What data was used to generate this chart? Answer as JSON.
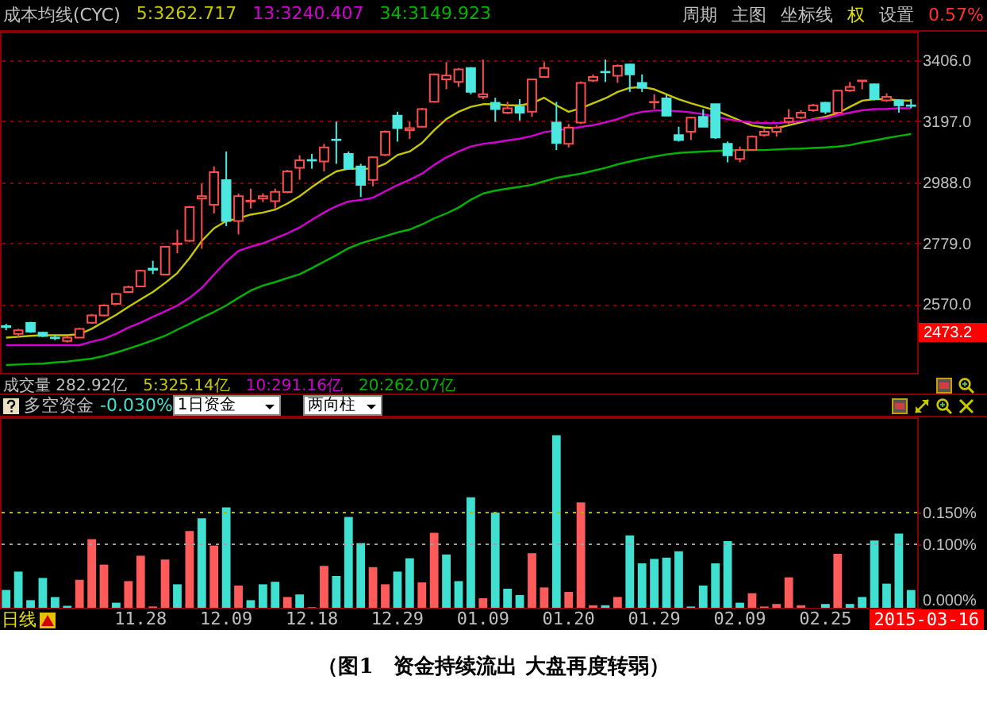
{
  "chart_data": [
    {
      "type": "candlestick",
      "title": "成本均线(CYC)",
      "legend": "top",
      "tick_labels": "y",
      "grid": "y",
      "categories": [
        null,
        null,
        null,
        null,
        null,
        null,
        null,
        null,
        null,
        null,
        null,
        "11.28",
        null,
        null,
        null,
        null,
        null,
        null,
        "12.09",
        null,
        null,
        null,
        null,
        null,
        null,
        "12.18",
        null,
        null,
        null,
        null,
        null,
        null,
        "12.29",
        null,
        null,
        null,
        null,
        null,
        null,
        "01.09",
        null,
        null,
        null,
        null,
        null,
        null,
        "01.20",
        null,
        null,
        null,
        null,
        null,
        null,
        "01.29",
        null,
        null,
        null,
        null,
        null,
        null,
        "02.09",
        null,
        null,
        null,
        null,
        null,
        null,
        "02.25",
        null,
        null,
        null,
        null,
        null,
        null,
        null
      ],
      "ohlc": [
        [
          2495,
          2503,
          2481,
          2492
        ],
        [
          2469,
          2486,
          2456,
          2481
        ],
        [
          2506,
          2510,
          2472,
          2476
        ],
        [
          2473,
          2476,
          2458,
          2461
        ],
        [
          2456,
          2464,
          2447,
          2454
        ],
        [
          2444,
          2461,
          2439,
          2456
        ],
        [
          2456,
          2489,
          2454,
          2486
        ],
        [
          2507,
          2537,
          2503,
          2532
        ],
        [
          2532,
          2570,
          2529,
          2566
        ],
        [
          2571,
          2609,
          2568,
          2605
        ],
        [
          2612,
          2634,
          2609,
          2629
        ],
        [
          2631,
          2688,
          2629,
          2685
        ],
        [
          2692,
          2719,
          2673,
          2688
        ],
        [
          2672,
          2770,
          2669,
          2767
        ],
        [
          2776,
          2825,
          2745,
          2778
        ],
        [
          2787,
          2907,
          2784,
          2903
        ],
        [
          2932,
          2983,
          2760,
          2940
        ],
        [
          2911,
          3042,
          2881,
          3022
        ],
        [
          2995,
          3093,
          2838,
          2855
        ],
        [
          2855,
          2949,
          2809,
          2940
        ],
        [
          2922,
          2966,
          2898,
          2925
        ],
        [
          2932,
          2950,
          2920,
          2940
        ],
        [
          2923,
          2966,
          2898,
          2955
        ],
        [
          2954,
          3030,
          2950,
          3025
        ],
        [
          3037,
          3080,
          2996,
          3063
        ],
        [
          3064,
          3085,
          3034,
          3062
        ],
        [
          3059,
          3119,
          3025,
          3107
        ],
        [
          3134,
          3195,
          3051,
          3132
        ],
        [
          3085,
          3093,
          3032,
          3034
        ],
        [
          3042,
          3051,
          2937,
          2979
        ],
        [
          2996,
          3075,
          2974,
          3073
        ],
        [
          3081,
          3165,
          3078,
          3161
        ],
        [
          3216,
          3229,
          3127,
          3173
        ],
        [
          3166,
          3195,
          3136,
          3173
        ],
        [
          3178,
          3242,
          3175,
          3238
        ],
        [
          3263,
          3360,
          3260,
          3357
        ],
        [
          3340,
          3399,
          3306,
          3353
        ],
        [
          3331,
          3379,
          3314,
          3374
        ],
        [
          3379,
          3382,
          3289,
          3297
        ],
        [
          3280,
          3408,
          3272,
          3289
        ],
        [
          3260,
          3277,
          3195,
          3238
        ],
        [
          3226,
          3263,
          3221,
          3241
        ],
        [
          3246,
          3272,
          3199,
          3226
        ],
        [
          3229,
          3340,
          3212,
          3340
        ],
        [
          3348,
          3399,
          3348,
          3379
        ],
        [
          3192,
          3263,
          3098,
          3122
        ],
        [
          3119,
          3187,
          3107,
          3175
        ],
        [
          3192,
          3333,
          3187,
          3328
        ],
        [
          3336,
          3357,
          3331,
          3348
        ],
        [
          3366,
          3408,
          3331,
          3364
        ],
        [
          3352,
          3391,
          3328,
          3386
        ],
        [
          3391,
          3394,
          3297,
          3357
        ],
        [
          3328,
          3357,
          3297,
          3311
        ],
        [
          3261,
          3289,
          3238,
          3263
        ],
        [
          3275,
          3289,
          3214,
          3216
        ],
        [
          3149,
          3178,
          3127,
          3132
        ],
        [
          3161,
          3212,
          3132,
          3209
        ],
        [
          3212,
          3238,
          3178,
          3178
        ],
        [
          3255,
          3255,
          3136,
          3141
        ],
        [
          3119,
          3127,
          3056,
          3080
        ],
        [
          3068,
          3110,
          3056,
          3098
        ],
        [
          3098,
          3148,
          3095,
          3144
        ],
        [
          3149,
          3170,
          3144,
          3161
        ],
        [
          3161,
          3183,
          3144,
          3175
        ],
        [
          3195,
          3238,
          3187,
          3207
        ],
        [
          3209,
          3234,
          3204,
          3226
        ],
        [
          3234,
          3256,
          3229,
          3251
        ],
        [
          3260,
          3263,
          3221,
          3229
        ],
        [
          3226,
          3304,
          3223,
          3301
        ],
        [
          3302,
          3331,
          3297,
          3314
        ],
        [
          3334,
          3336,
          3306,
          3336
        ],
        [
          3323,
          3326,
          3268,
          3272
        ],
        [
          3268,
          3292,
          3263,
          3280
        ],
        [
          3268,
          3272,
          3226,
          3251
        ],
        [
          3251,
          3272,
          3241,
          3249
        ]
      ],
      "colors": [
        "#4ce8e0",
        "#ff4d4d",
        "#4ce8e0",
        "#4ce8e0",
        "#4ce8e0",
        "#ff4d4d",
        "#ff4d4d",
        "#ff4d4d",
        "#ff4d4d",
        "#ff4d4d",
        "#ff4d4d",
        "#ff4d4d",
        "#4ce8e0",
        "#ff4d4d",
        "#ff4d4d",
        "#ff4d4d",
        "#ff4d4d",
        "#ff4d4d",
        "#4ce8e0",
        "#ff4d4d",
        "#ff4d4d",
        "#ff4d4d",
        "#ff4d4d",
        "#ff4d4d",
        "#ff4d4d",
        "#4ce8e0",
        "#ff4d4d",
        "#4ce8e0",
        "#4ce8e0",
        "#4ce8e0",
        "#ff4d4d",
        "#ff4d4d",
        "#4ce8e0",
        "#ff4d4d",
        "#ff4d4d",
        "#ff4d4d",
        "#ff4d4d",
        "#ff4d4d",
        "#4ce8e0",
        "#ff4d4d",
        "#4ce8e0",
        "#ff4d4d",
        "#4ce8e0",
        "#ff4d4d",
        "#ff4d4d",
        "#4ce8e0",
        "#ff4d4d",
        "#ff4d4d",
        "#ff4d4d",
        "#4ce8e0",
        "#ff4d4d",
        "#4ce8e0",
        "#4ce8e0",
        "#ff4d4d",
        "#4ce8e0",
        "#4ce8e0",
        "#ff4d4d",
        "#4ce8e0",
        "#4ce8e0",
        "#4ce8e0",
        "#ff4d4d",
        "#ff4d4d",
        "#ff4d4d",
        "#ff4d4d",
        "#ff4d4d",
        "#ff4d4d",
        "#ff4d4d",
        "#4ce8e0",
        "#ff4d4d",
        "#ff4d4d",
        "#ff4d4d",
        "#4ce8e0",
        "#ff4d4d",
        "#4ce8e0",
        "#4ce8e0"
      ],
      "series": [
        {
          "name": "5:3262.717",
          "type": "line",
          "color": "#c8c800",
          "values": [
            2456,
            2459,
            2462,
            2464,
            2464,
            2464,
            2468,
            2486,
            2510,
            2534,
            2561,
            2587,
            2612,
            2643,
            2677,
            2728,
            2787,
            2830,
            2855,
            2864,
            2877,
            2884,
            2894,
            2915,
            2940,
            2971,
            3000,
            3025,
            3034,
            3034,
            3034,
            3051,
            3081,
            3093,
            3122,
            3166,
            3204,
            3229,
            3246,
            3255,
            3255,
            3251,
            3251,
            3258,
            3277,
            3251,
            3229,
            3241,
            3258,
            3275,
            3297,
            3311,
            3314,
            3306,
            3289,
            3272,
            3258,
            3246,
            3234,
            3217,
            3199,
            3182,
            3175,
            3173,
            3183,
            3193,
            3204,
            3212,
            3224,
            3246,
            3267,
            3272,
            3272,
            3268,
            3267
          ]
        },
        {
          "name": "13:3240.407",
          "type": "line",
          "color": "#d400d4",
          "values": [
            2430,
            2430,
            2430,
            2430,
            2430,
            2430,
            2430,
            2442,
            2452,
            2469,
            2490,
            2507,
            2527,
            2546,
            2566,
            2592,
            2626,
            2672,
            2716,
            2753,
            2767,
            2779,
            2796,
            2813,
            2833,
            2859,
            2884,
            2906,
            2922,
            2927,
            2935,
            2957,
            2978,
            2996,
            3017,
            3047,
            3073,
            3093,
            3110,
            3119,
            3124,
            3131,
            3137,
            3146,
            3159,
            3166,
            3170,
            3177,
            3183,
            3193,
            3204,
            3219,
            3229,
            3233,
            3233,
            3231,
            3227,
            3221,
            3212,
            3204,
            3197,
            3192,
            3190,
            3190,
            3193,
            3197,
            3202,
            3207,
            3217,
            3226,
            3234,
            3238,
            3239,
            3241,
            3241
          ]
        },
        {
          "name": "34:3149.923",
          "type": "line",
          "color": "#00b400",
          "values": [
            2362,
            2364,
            2366,
            2367,
            2371,
            2374,
            2379,
            2384,
            2393,
            2405,
            2418,
            2432,
            2447,
            2462,
            2483,
            2503,
            2524,
            2544,
            2566,
            2592,
            2617,
            2634,
            2646,
            2660,
            2673,
            2694,
            2716,
            2738,
            2762,
            2779,
            2791,
            2803,
            2816,
            2826,
            2843,
            2864,
            2881,
            2901,
            2928,
            2949,
            2959,
            2966,
            2972,
            2979,
            2991,
            3003,
            3010,
            3017,
            3027,
            3037,
            3049,
            3059,
            3068,
            3076,
            3083,
            3088,
            3091,
            3093,
            3095,
            3097,
            3097,
            3098,
            3098,
            3100,
            3102,
            3103,
            3105,
            3107,
            3110,
            3115,
            3124,
            3131,
            3139,
            3146,
            3153
          ]
        }
      ],
      "ylim": [
        2335,
        3503
      ],
      "yticks": [
        {
          "value": 2570,
          "label": "2570.0"
        },
        {
          "value": 2779,
          "label": "2779.0"
        },
        {
          "value": 2988,
          "label": "2988.0"
        },
        {
          "value": 3197,
          "label": "3197.0"
        },
        {
          "value": 3406,
          "label": "3406.0"
        }
      ],
      "ref_lines": [
        {
          "axis": "y",
          "value": 2473.2,
          "label": "2473.2",
          "color": "#ff0000"
        }
      ],
      "annotations": [
        "周期",
        "主图",
        "坐标线",
        "权",
        "设置",
        "0.57%"
      ]
    },
    {
      "type": "bar",
      "title": "多空资金",
      "subtitle": "-0.030%",
      "categories": [
        null,
        null,
        null,
        null,
        null,
        null,
        null,
        null,
        null,
        null,
        null,
        "11.28",
        null,
        null,
        null,
        null,
        null,
        null,
        "12.09",
        null,
        null,
        null,
        null,
        null,
        null,
        "12.18",
        null,
        null,
        null,
        null,
        null,
        null,
        "12.29",
        null,
        null,
        null,
        null,
        null,
        null,
        "01.09",
        null,
        null,
        null,
        null,
        null,
        null,
        "01.20",
        null,
        null,
        null,
        null,
        null,
        null,
        "01.29",
        null,
        null,
        null,
        null,
        null,
        null,
        "02.09",
        null,
        null,
        null,
        null,
        null,
        null,
        "02.25",
        null,
        null,
        null,
        null,
        null,
        null,
        null
      ],
      "values": [
        0.028,
        0.057,
        0.012,
        0.047,
        0.017,
        0.003,
        0.044,
        0.108,
        0.068,
        0.008,
        0.042,
        0.082,
        0.002,
        0.076,
        0.037,
        0.121,
        0.141,
        0.098,
        0.158,
        0.035,
        0.012,
        0.037,
        0.041,
        0.017,
        0.021,
        0.001,
        0.066,
        0.05,
        0.143,
        0.102,
        0.064,
        0.037,
        0.057,
        0.078,
        0.04,
        0.118,
        0.084,
        0.042,
        0.174,
        0.015,
        0.15,
        0.03,
        0.02,
        0.086,
        0.032,
        0.272,
        0.025,
        0.166,
        0.004,
        0.004,
        0.017,
        0.114,
        0.07,
        0.077,
        0.079,
        0.089,
        0.002,
        0.035,
        0.07,
        0.105,
        0.008,
        0.023,
        0.002,
        0.006,
        0.048,
        0.004,
        null,
        0.006,
        0.085,
        0.006,
        0.017,
        0.106,
        0.038,
        0.117,
        0.028
      ],
      "colors": [
        "#40e0d0",
        "#40e0d0",
        "#40e0d0",
        "#40e0d0",
        "#40e0d0",
        "#40e0d0",
        "#ff5b5b",
        "#ff5b5b",
        "#ff5b5b",
        "#40e0d0",
        "#ff5b5b",
        "#ff5b5b",
        "#ff5b5b",
        "#ff5b5b",
        "#40e0d0",
        "#ff5b5b",
        "#40e0d0",
        "#ff5b5b",
        "#40e0d0",
        "#ff5b5b",
        "#40e0d0",
        "#40e0d0",
        "#40e0d0",
        "#ff5b5b",
        "#40e0d0",
        "#ff5b5b",
        "#ff5b5b",
        "#40e0d0",
        "#40e0d0",
        "#40e0d0",
        "#ff5b5b",
        "#ff5b5b",
        "#40e0d0",
        "#40e0d0",
        "#ff5b5b",
        "#ff5b5b",
        "#40e0d0",
        "#40e0d0",
        "#40e0d0",
        "#ff5b5b",
        "#40e0d0",
        "#40e0d0",
        "#40e0d0",
        "#ff5b5b",
        "#ff5b5b",
        "#40e0d0",
        "#ff5b5b",
        "#ff5b5b",
        "#ff5b5b",
        "#40e0d0",
        "#ff5b5b",
        "#40e0d0",
        "#40e0d0",
        "#40e0d0",
        "#40e0d0",
        "#40e0d0",
        "#40e0d0",
        "#40e0d0",
        "#40e0d0",
        "#40e0d0",
        "#40e0d0",
        "#ff5b5b",
        "#ff5b5b",
        "#ff5b5b",
        "#ff5b5b",
        "#ff5b5b",
        null,
        "#40e0d0",
        "#ff5b5b",
        "#40e0d0",
        "#40e0d0",
        "#40e0d0",
        "#40e0d0",
        "#40e0d0",
        "#40e0d0"
      ],
      "ylim": [
        0,
        0.3
      ],
      "yticks": [
        {
          "value": 0,
          "label": "0.000%"
        },
        {
          "value": 0.1,
          "label": "0.100%"
        },
        {
          "value": 0.15,
          "label": "0.150%"
        }
      ],
      "ref_lines": [
        {
          "axis": "y",
          "value": 0.1,
          "color": "#a0a0a0",
          "line_style": "dotted"
        },
        {
          "axis": "y",
          "value": 0.15,
          "color": "#b4b400",
          "line_style": "dotted"
        }
      ],
      "annotations": [
        "成交量  282.92亿",
        "5:325.14亿",
        "10:291.16亿",
        "20:262.07亿",
        "1日资金",
        "两向柱",
        "日线",
        "2015-03-16",
        "（图1　资金持续流出 大盘再度转弱）"
      ]
    }
  ]
}
